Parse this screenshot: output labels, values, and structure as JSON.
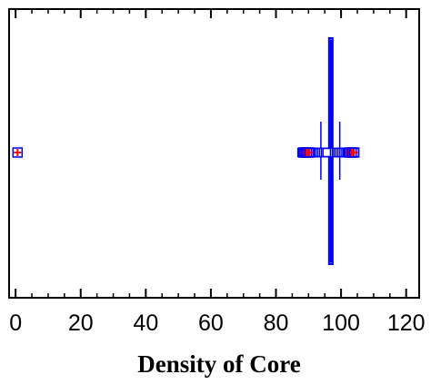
{
  "chart_data": {
    "type": "boxplot",
    "title": "",
    "xlabel": "Density of Core",
    "ylabel": "",
    "xlim": [
      -2,
      124
    ],
    "x_ticks_major": [
      0,
      20,
      40,
      60,
      80,
      100,
      120
    ],
    "x_ticks_minor_step": 5,
    "grid": false,
    "series": [
      {
        "min": 96.1,
        "q1": 96.3,
        "median": 96.9,
        "q3": 97.4,
        "max": 97.7,
        "mean": 96.9,
        "notch_low": 93.8,
        "notch_high": 99.6,
        "outliers_near": [
          88.0,
          88.6,
          89.2,
          89.6,
          90.1,
          90.5,
          91.0,
          91.6,
          92.2,
          92.8,
          93.4,
          94.0,
          94.6,
          95.2,
          95.7,
          98.0,
          98.6,
          99.1,
          99.7,
          100.3,
          100.9,
          101.5,
          102.0,
          102.5,
          103.0,
          103.4,
          103.8,
          104.2
        ],
        "outliers_far": [
          0.6,
          88.4,
          89.0,
          89.6,
          90.3,
          102.4,
          103.3,
          104.0
        ],
        "color": "#0000ff",
        "fill_color": "#6f6fff",
        "outlier_marker_color": "#ff0000"
      }
    ]
  }
}
